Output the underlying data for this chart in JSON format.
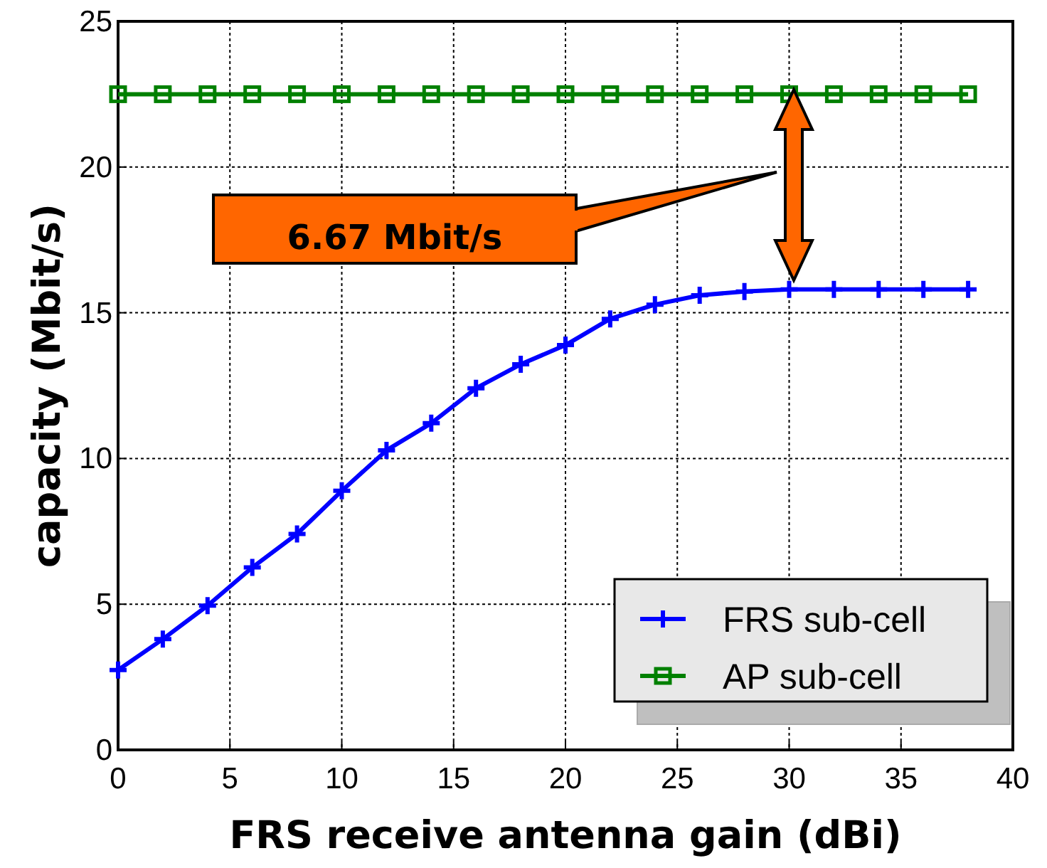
{
  "chart_data": {
    "type": "line",
    "xlabel": "FRS receive antenna gain (dBi)",
    "ylabel": "capacity (Mbit/s)",
    "x": [
      0,
      2,
      4,
      6,
      8,
      10,
      12,
      14,
      16,
      18,
      20,
      22,
      24,
      26,
      28,
      30,
      32,
      34,
      36,
      38
    ],
    "series": [
      {
        "name": "FRS sub-cell",
        "color": "#0000ff",
        "marker": "cross",
        "values": [
          2.74,
          3.8,
          4.95,
          6.26,
          7.41,
          8.89,
          10.28,
          11.21,
          12.41,
          13.23,
          13.89,
          14.79,
          15.28,
          15.6,
          15.73,
          15.8,
          15.8,
          15.8,
          15.8,
          15.8
        ]
      },
      {
        "name": "AP sub-cell",
        "color": "#008000",
        "marker": "square",
        "values": [
          22.5,
          22.5,
          22.5,
          22.5,
          22.5,
          22.5,
          22.5,
          22.5,
          22.5,
          22.5,
          22.5,
          22.5,
          22.5,
          22.5,
          22.5,
          22.5,
          22.5,
          22.5,
          22.5,
          22.5
        ]
      }
    ],
    "xlim": [
      0,
      40
    ],
    "xticks": [
      0,
      5,
      10,
      15,
      20,
      25,
      30,
      35,
      40
    ],
    "ylim": [
      0,
      25
    ],
    "yticks": [
      0,
      5,
      10,
      15,
      20,
      25
    ],
    "grid": true,
    "legend": "bottom right",
    "line_style": "solid",
    "annotations": [
      "6.67 Mbit/s"
    ]
  }
}
